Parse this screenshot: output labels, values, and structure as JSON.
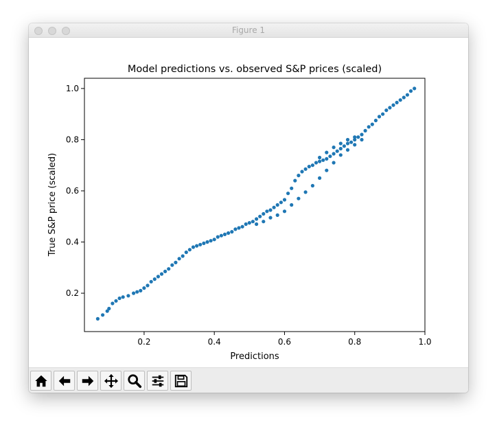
{
  "window": {
    "title": "Figure 1"
  },
  "toolbar": {
    "buttons": [
      {
        "name": "home-button",
        "icon": "home-icon"
      },
      {
        "name": "back-button",
        "icon": "arrow-left-icon"
      },
      {
        "name": "forward-button",
        "icon": "arrow-right-icon"
      },
      {
        "name": "pan-button",
        "icon": "move-icon"
      },
      {
        "name": "zoom-button",
        "icon": "magnifier-icon"
      },
      {
        "name": "configure-subplots-button",
        "icon": "sliders-icon"
      },
      {
        "name": "save-button",
        "icon": "floppy-disk-icon"
      }
    ]
  },
  "chart_data": {
    "type": "scatter",
    "title": "Model predictions vs. observed S&P prices (scaled)",
    "xlabel": "Predictions",
    "ylabel": "True S&P price (scaled)",
    "xlim": [
      0.03,
      1.0
    ],
    "ylim": [
      0.05,
      1.04
    ],
    "xticks": [
      0.2,
      0.4,
      0.6,
      0.8,
      1.0
    ],
    "xtick_labels": [
      "0.2",
      "0.4",
      "0.6",
      "0.8",
      "1.0"
    ],
    "yticks": [
      0.2,
      0.4,
      0.6,
      0.8,
      1.0
    ],
    "ytick_labels": [
      "0.2",
      "0.4",
      "0.6",
      "0.8",
      "1.0"
    ],
    "grid": false,
    "marker_color": "#1f77b4",
    "series": [
      {
        "x": [
          0.068,
          0.082,
          0.095,
          0.1,
          0.11,
          0.12,
          0.13,
          0.14,
          0.155,
          0.17,
          0.18,
          0.19,
          0.2,
          0.21,
          0.22,
          0.23,
          0.24,
          0.25,
          0.26,
          0.27,
          0.28,
          0.29,
          0.3,
          0.31,
          0.32,
          0.33,
          0.34,
          0.35,
          0.36,
          0.37,
          0.38,
          0.39,
          0.4,
          0.41,
          0.42,
          0.43,
          0.44,
          0.45,
          0.46,
          0.47,
          0.48,
          0.49,
          0.5,
          0.51,
          0.52,
          0.53,
          0.54,
          0.55,
          0.56,
          0.57,
          0.58,
          0.59,
          0.6,
          0.61,
          0.62,
          0.63,
          0.64,
          0.65,
          0.66,
          0.67,
          0.68,
          0.69,
          0.7,
          0.71,
          0.72,
          0.73,
          0.74,
          0.75,
          0.76,
          0.77,
          0.78,
          0.79,
          0.8,
          0.81,
          0.82,
          0.83,
          0.84,
          0.85,
          0.86,
          0.87,
          0.88,
          0.89,
          0.9,
          0.91,
          0.92,
          0.93,
          0.94,
          0.95,
          0.96,
          0.97
        ],
        "y": [
          0.1,
          0.115,
          0.13,
          0.14,
          0.16,
          0.17,
          0.18,
          0.185,
          0.19,
          0.2,
          0.205,
          0.21,
          0.22,
          0.23,
          0.245,
          0.255,
          0.265,
          0.275,
          0.285,
          0.295,
          0.31,
          0.32,
          0.335,
          0.345,
          0.36,
          0.37,
          0.38,
          0.385,
          0.39,
          0.395,
          0.4,
          0.405,
          0.41,
          0.42,
          0.425,
          0.43,
          0.435,
          0.44,
          0.45,
          0.455,
          0.46,
          0.47,
          0.475,
          0.48,
          0.49,
          0.5,
          0.51,
          0.52,
          0.525,
          0.535,
          0.545,
          0.555,
          0.565,
          0.59,
          0.61,
          0.64,
          0.66,
          0.675,
          0.685,
          0.695,
          0.7,
          0.71,
          0.715,
          0.72,
          0.725,
          0.735,
          0.745,
          0.755,
          0.765,
          0.775,
          0.785,
          0.79,
          0.8,
          0.81,
          0.82,
          0.835,
          0.85,
          0.86,
          0.875,
          0.89,
          0.9,
          0.915,
          0.925,
          0.935,
          0.945,
          0.955,
          0.965,
          0.975,
          0.99,
          1.0
        ]
      },
      {
        "x": [
          0.52,
          0.54,
          0.56,
          0.58,
          0.6,
          0.62,
          0.64,
          0.66,
          0.68,
          0.7,
          0.72,
          0.74,
          0.76,
          0.78,
          0.8,
          0.82
        ],
        "y": [
          0.47,
          0.48,
          0.495,
          0.505,
          0.52,
          0.545,
          0.57,
          0.595,
          0.62,
          0.65,
          0.68,
          0.71,
          0.74,
          0.76,
          0.78,
          0.8
        ]
      },
      {
        "x": [
          0.7,
          0.72,
          0.74,
          0.76,
          0.78,
          0.8
        ],
        "y": [
          0.73,
          0.75,
          0.77,
          0.785,
          0.8,
          0.81
        ]
      }
    ]
  }
}
